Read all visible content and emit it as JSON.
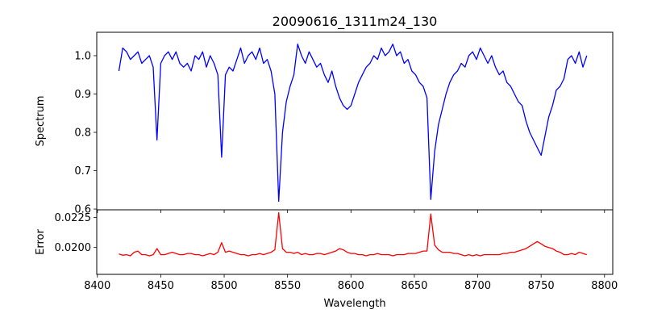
{
  "chart_data": [
    {
      "type": "line",
      "title": "20090616_1311m24_130",
      "xlabel": "",
      "ylabel": "Spectrum",
      "xlim": [
        8399.5,
        8806.5
      ],
      "ylim": [
        0.598,
        1.061
      ],
      "xticks": [
        8400,
        8450,
        8500,
        8550,
        8600,
        8650,
        8700,
        8750,
        8800
      ],
      "yticks": [
        0.6,
        0.7,
        0.8,
        0.9,
        1.0
      ],
      "ytick_labels": [
        "0.6",
        "0.7",
        "0.8",
        "0.9",
        "1.0"
      ],
      "grid": false,
      "color": "#0000ff",
      "x_start": 8417,
      "x_step": 3,
      "values": [
        0.96,
        1.02,
        1.01,
        0.99,
        1.0,
        1.01,
        0.98,
        0.99,
        1.0,
        0.97,
        0.78,
        0.98,
        1.0,
        1.01,
        0.99,
        1.01,
        0.98,
        0.97,
        0.98,
        0.96,
        1.0,
        0.99,
        1.01,
        0.97,
        1.0,
        0.98,
        0.95,
        0.735,
        0.95,
        0.97,
        0.96,
        0.99,
        1.02,
        0.98,
        1.0,
        1.01,
        0.99,
        1.02,
        0.98,
        0.99,
        0.96,
        0.9,
        0.62,
        0.8,
        0.88,
        0.92,
        0.95,
        1.03,
        1.0,
        0.98,
        1.01,
        0.99,
        0.97,
        0.98,
        0.95,
        0.93,
        0.96,
        0.92,
        0.89,
        0.87,
        0.86,
        0.87,
        0.9,
        0.93,
        0.95,
        0.97,
        0.98,
        1.0,
        0.99,
        1.02,
        1.0,
        1.01,
        1.03,
        1.0,
        1.01,
        0.98,
        0.99,
        0.96,
        0.95,
        0.93,
        0.92,
        0.89,
        0.625,
        0.75,
        0.82,
        0.86,
        0.9,
        0.93,
        0.95,
        0.96,
        0.98,
        0.97,
        1.0,
        1.01,
        0.99,
        1.02,
        1.0,
        0.98,
        1.0,
        0.97,
        0.95,
        0.96,
        0.93,
        0.92,
        0.9,
        0.88,
        0.87,
        0.83,
        0.8,
        0.78,
        0.76,
        0.74,
        0.79,
        0.84,
        0.87,
        0.91,
        0.92,
        0.94,
        0.99,
        1.0,
        0.98,
        1.01,
        0.97,
        1.0
      ]
    },
    {
      "type": "line",
      "title": "",
      "xlabel": "Wavelength",
      "ylabel": "Error",
      "xlim": [
        8399.5,
        8806.5
      ],
      "ylim": [
        0.01775,
        0.02315
      ],
      "xticks": [
        8400,
        8450,
        8500,
        8550,
        8600,
        8650,
        8700,
        8750,
        8800
      ],
      "xtick_labels": [
        "8400",
        "8450",
        "8500",
        "8550",
        "8600",
        "8650",
        "8700",
        "8750",
        "8800"
      ],
      "yticks": [
        0.02,
        0.0225
      ],
      "ytick_labels": [
        "0.0200",
        "0.0225"
      ],
      "grid": false,
      "color": "#ff0000",
      "x_start": 8417,
      "x_step": 3,
      "values": [
        0.01945,
        0.01935,
        0.0194,
        0.0193,
        0.0196,
        0.0197,
        0.0194,
        0.0194,
        0.0193,
        0.0194,
        0.0199,
        0.0194,
        0.0194,
        0.0195,
        0.0196,
        0.0195,
        0.0194,
        0.0194,
        0.0195,
        0.0195,
        0.0194,
        0.0194,
        0.0193,
        0.0194,
        0.0195,
        0.0194,
        0.0196,
        0.0204,
        0.0196,
        0.0197,
        0.0196,
        0.0195,
        0.0194,
        0.0194,
        0.0193,
        0.0194,
        0.0194,
        0.0195,
        0.0194,
        0.0195,
        0.0196,
        0.0198,
        0.0229,
        0.0199,
        0.0196,
        0.0196,
        0.0195,
        0.0196,
        0.0194,
        0.0195,
        0.0194,
        0.0194,
        0.0195,
        0.0195,
        0.0194,
        0.0195,
        0.0196,
        0.0197,
        0.0199,
        0.0198,
        0.0196,
        0.0195,
        0.0195,
        0.0194,
        0.0194,
        0.0193,
        0.0194,
        0.0194,
        0.0195,
        0.0194,
        0.0194,
        0.0194,
        0.0193,
        0.0194,
        0.0194,
        0.0194,
        0.0195,
        0.0195,
        0.0195,
        0.0196,
        0.0197,
        0.0197,
        0.0228,
        0.0202,
        0.0198,
        0.0196,
        0.0196,
        0.0196,
        0.0195,
        0.0195,
        0.0194,
        0.0193,
        0.0194,
        0.0193,
        0.0194,
        0.0193,
        0.0194,
        0.0194,
        0.0194,
        0.0194,
        0.0194,
        0.0195,
        0.0195,
        0.0196,
        0.0196,
        0.0197,
        0.0198,
        0.0199,
        0.0201,
        0.0203,
        0.0205,
        0.0203,
        0.0201,
        0.02,
        0.0199,
        0.0197,
        0.0196,
        0.0194,
        0.0194,
        0.0195,
        0.0194,
        0.0196,
        0.0195,
        0.0194
      ]
    }
  ]
}
